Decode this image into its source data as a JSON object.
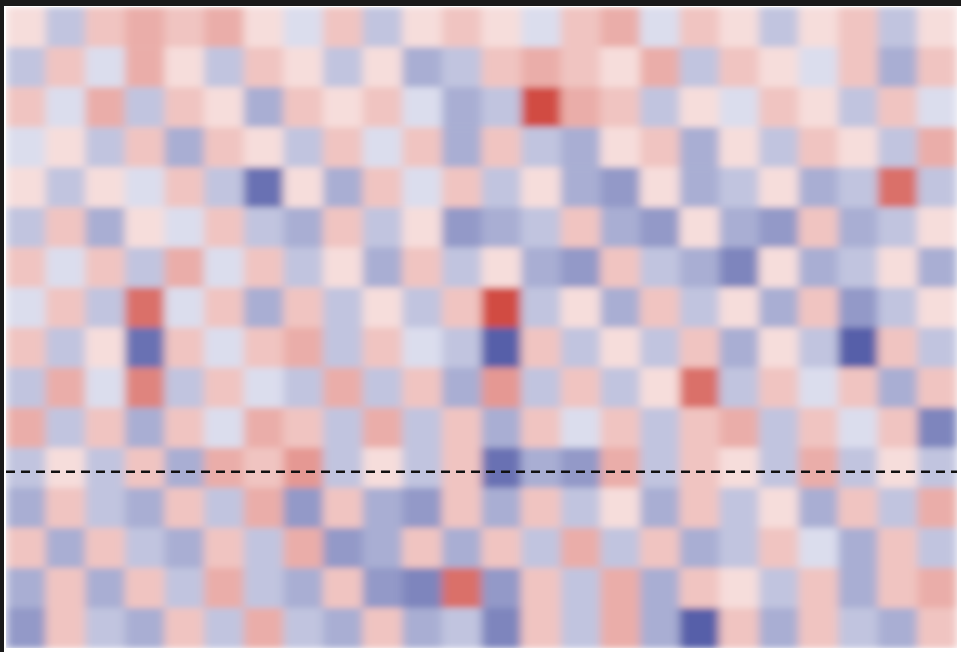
{
  "chart_data": {
    "type": "heatmap",
    "xlim": [
      0,
      24
    ],
    "ylim": [
      16,
      0
    ],
    "tick_labels": false,
    "zlim": [
      -1,
      1
    ],
    "hline": 11.6,
    "cells": [
      [
        0.1,
        -0.2,
        0.2,
        0.3,
        0.2,
        0.3,
        0.1,
        -0.1,
        0.2,
        -0.2,
        0.1,
        0.2,
        0.1,
        -0.1,
        0.2,
        0.3,
        -0.1,
        0.2,
        0.1,
        -0.2,
        0.1,
        0.2,
        -0.2,
        0.1
      ],
      [
        -0.2,
        0.2,
        -0.1,
        0.3,
        0.1,
        -0.2,
        0.2,
        0.1,
        -0.2,
        0.1,
        -0.3,
        -0.2,
        0.2,
        0.3,
        0.2,
        0.1,
        0.3,
        -0.2,
        0.2,
        0.1,
        -0.1,
        0.2,
        -0.3,
        0.2
      ],
      [
        0.2,
        -0.1,
        0.3,
        -0.2,
        0.2,
        0.1,
        -0.3,
        0.2,
        0.1,
        0.2,
        -0.1,
        -0.3,
        -0.2,
        0.8,
        0.3,
        0.2,
        -0.2,
        0.1,
        -0.1,
        0.2,
        0.1,
        -0.2,
        0.2,
        -0.1
      ],
      [
        -0.1,
        0.1,
        -0.2,
        0.2,
        -0.3,
        0.2,
        0.1,
        -0.2,
        0.2,
        -0.1,
        0.2,
        -0.3,
        0.2,
        -0.2,
        -0.3,
        0.1,
        0.2,
        -0.3,
        0.1,
        -0.2,
        0.2,
        0.1,
        -0.2,
        0.3
      ],
      [
        0.1,
        -0.2,
        0.1,
        -0.1,
        0.2,
        -0.2,
        -0.6,
        0.1,
        -0.3,
        0.2,
        -0.1,
        0.2,
        -0.2,
        0.1,
        -0.3,
        -0.4,
        0.1,
        -0.3,
        -0.2,
        0.1,
        -0.3,
        -0.2,
        0.6,
        -0.2
      ],
      [
        -0.2,
        0.2,
        -0.3,
        0.1,
        -0.1,
        0.2,
        -0.2,
        -0.3,
        0.2,
        -0.2,
        0.1,
        -0.4,
        -0.3,
        -0.2,
        0.2,
        -0.3,
        -0.4,
        0.1,
        -0.3,
        -0.4,
        0.2,
        -0.3,
        -0.2,
        0.1
      ],
      [
        0.2,
        -0.1,
        0.2,
        -0.2,
        0.3,
        -0.1,
        0.2,
        -0.2,
        0.1,
        -0.3,
        0.2,
        -0.2,
        0.1,
        -0.3,
        -0.4,
        0.2,
        -0.2,
        -0.3,
        -0.5,
        0.1,
        -0.3,
        -0.2,
        0.1,
        -0.3
      ],
      [
        -0.1,
        0.2,
        -0.2,
        0.6,
        -0.1,
        0.2,
        -0.3,
        0.2,
        -0.2,
        0.1,
        -0.2,
        0.2,
        0.8,
        -0.2,
        0.1,
        -0.3,
        0.2,
        -0.2,
        0.1,
        -0.3,
        0.2,
        -0.4,
        -0.2,
        0.1
      ],
      [
        0.2,
        -0.2,
        0.1,
        -0.6,
        0.2,
        -0.1,
        0.2,
        0.3,
        -0.2,
        0.2,
        -0.1,
        -0.2,
        -0.7,
        0.2,
        -0.2,
        0.1,
        -0.2,
        0.2,
        -0.3,
        0.1,
        -0.2,
        -0.7,
        0.2,
        -0.2
      ],
      [
        -0.2,
        0.3,
        -0.1,
        0.5,
        -0.2,
        0.2,
        -0.1,
        -0.2,
        0.3,
        -0.2,
        0.2,
        -0.3,
        0.4,
        -0.2,
        0.2,
        -0.2,
        0.1,
        0.6,
        -0.2,
        0.2,
        -0.1,
        0.2,
        -0.3,
        0.2
      ],
      [
        0.3,
        -0.2,
        0.2,
        -0.3,
        0.2,
        -0.1,
        0.3,
        0.2,
        -0.2,
        0.3,
        -0.2,
        0.2,
        -0.3,
        0.2,
        -0.1,
        0.2,
        -0.2,
        0.2,
        0.3,
        -0.2,
        0.2,
        -0.1,
        0.2,
        -0.5
      ],
      [
        -0.2,
        0.1,
        -0.2,
        0.2,
        -0.3,
        0.3,
        0.2,
        0.4,
        -0.2,
        0.1,
        -0.2,
        0.2,
        -0.6,
        -0.3,
        -0.4,
        0.3,
        -0.2,
        0.2,
        0.1,
        -0.2,
        0.3,
        -0.2,
        0.1,
        -0.2
      ],
      [
        -0.3,
        0.2,
        -0.2,
        -0.3,
        0.2,
        -0.2,
        0.3,
        -0.4,
        0.2,
        -0.3,
        -0.4,
        0.2,
        -0.3,
        0.2,
        -0.2,
        0.1,
        -0.3,
        0.2,
        -0.2,
        0.1,
        -0.3,
        0.2,
        -0.2,
        0.3
      ],
      [
        0.2,
        -0.3,
        0.2,
        -0.2,
        -0.3,
        0.2,
        -0.2,
        0.3,
        -0.4,
        -0.3,
        0.2,
        -0.3,
        0.2,
        -0.2,
        0.3,
        -0.2,
        0.2,
        -0.3,
        -0.2,
        0.2,
        -0.1,
        -0.3,
        0.2,
        -0.2
      ],
      [
        -0.3,
        0.2,
        -0.3,
        0.2,
        -0.2,
        0.3,
        -0.2,
        -0.3,
        0.2,
        -0.4,
        -0.5,
        0.6,
        -0.4,
        0.2,
        -0.2,
        0.3,
        -0.3,
        0.2,
        0.1,
        -0.2,
        0.2,
        -0.3,
        0.2,
        0.3
      ],
      [
        -0.4,
        0.2,
        -0.2,
        -0.3,
        0.2,
        -0.2,
        0.3,
        -0.2,
        -0.3,
        0.2,
        -0.3,
        -0.2,
        -0.5,
        0.2,
        -0.2,
        0.3,
        -0.3,
        -0.7,
        0.2,
        -0.3,
        0.2,
        -0.2,
        -0.3,
        0.2
      ]
    ]
  }
}
